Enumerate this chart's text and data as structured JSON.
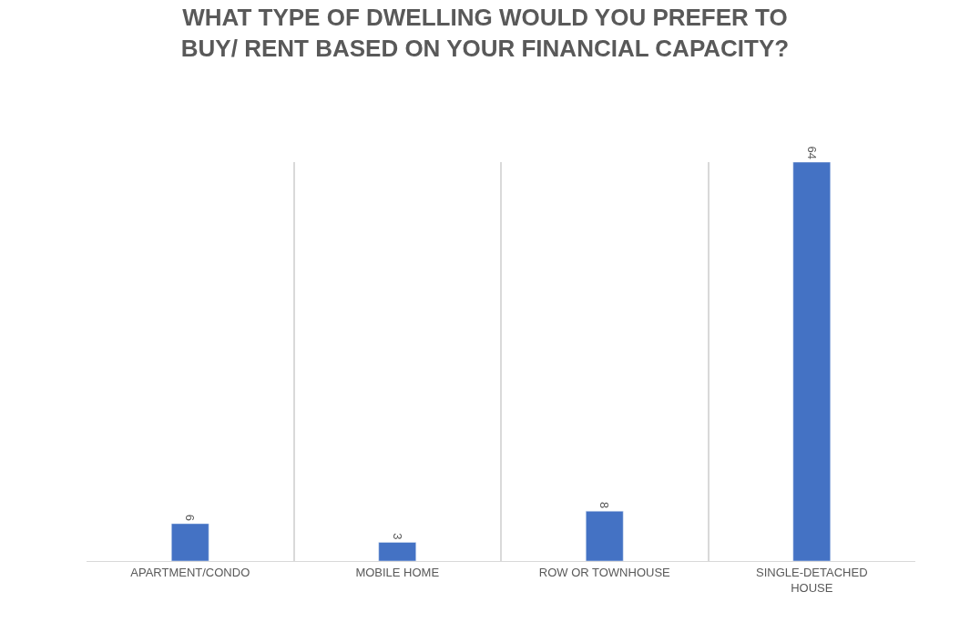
{
  "chart_data": {
    "type": "bar",
    "title": "WHAT TYPE OF DWELLING WOULD YOU PREFER TO BUY/ RENT BASED ON YOUR FINANCIAL CAPACITY?",
    "categories": [
      "APARTMENT/CONDO",
      "MOBILE HOME",
      "ROW OR TOWNHOUSE",
      "SINGLE-DETACHED HOUSE"
    ],
    "values": [
      6,
      3,
      8,
      64
    ],
    "color": "#4472c4",
    "data_labels": true,
    "grid": "x",
    "tick_labels": "x"
  }
}
